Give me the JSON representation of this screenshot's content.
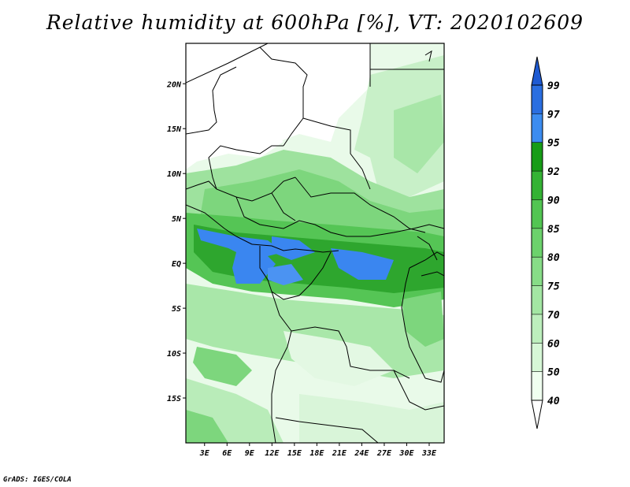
{
  "title": "Relative humidity at 600hPa [%], VT: 2020102609",
  "credit": "GrADS: IGES/COLA",
  "lon_ticks": [
    {
      "lon": 3,
      "label": "3E"
    },
    {
      "lon": 6,
      "label": "6E"
    },
    {
      "lon": 9,
      "label": "9E"
    },
    {
      "lon": 12,
      "label": "12E"
    },
    {
      "lon": 15,
      "label": "15E"
    },
    {
      "lon": 18,
      "label": "18E"
    },
    {
      "lon": 21,
      "label": "21E"
    },
    {
      "lon": 24,
      "label": "24E"
    },
    {
      "lon": 27,
      "label": "27E"
    },
    {
      "lon": 30,
      "label": "30E"
    },
    {
      "lon": 33,
      "label": "33E"
    }
  ],
  "lat_ticks": [
    {
      "lat": 20,
      "label": "20N"
    },
    {
      "lat": 15,
      "label": "15N"
    },
    {
      "lat": 10,
      "label": "10N"
    },
    {
      "lat": 5,
      "label": "5N"
    },
    {
      "lat": 0,
      "label": "EQ"
    },
    {
      "lat": -5,
      "label": "5S"
    },
    {
      "lat": -10,
      "label": "10S"
    },
    {
      "lat": -15,
      "label": "15S"
    }
  ],
  "lon_range": [
    0.5,
    35
  ],
  "lat_range": [
    -20,
    24.5
  ],
  "colorbar": {
    "levels": [
      "40",
      "50",
      "60",
      "70",
      "75",
      "80",
      "85",
      "90",
      "92",
      "95",
      "97",
      "99"
    ],
    "colors": [
      "#f0fff0",
      "#d6f7d6",
      "#bdefbd",
      "#a3e6a3",
      "#87dc87",
      "#6cd26c",
      "#52c552",
      "#34b234",
      "#179c17",
      "#3c8cf0",
      "#2a6ee0",
      "#1e5ad2"
    ],
    "extend": "both"
  },
  "colors": {
    "low": "#ffffff",
    "mid": "#8cdc8c",
    "high": "#2a9a2a",
    "very_high": "#3a86f0",
    "border": "#000000"
  }
}
